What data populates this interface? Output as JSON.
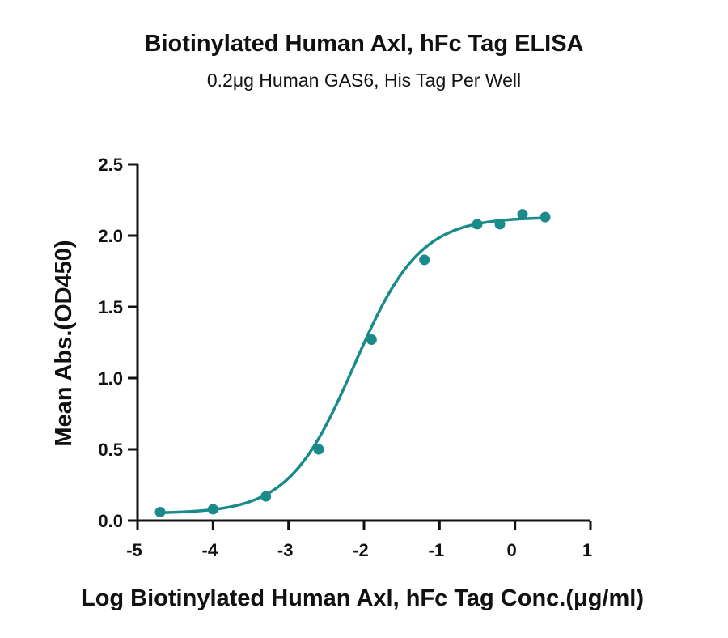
{
  "chart_data": {
    "type": "scatter",
    "title": "Biotinylated Human Axl, hFc Tag ELISA",
    "subtitle": "0.2μg Human GAS6, His Tag Per Well",
    "xlabel": "Log Biotinylated Human Axl, hFc Tag Conc.(μg/ml)",
    "ylabel": "Mean Abs.(OD450)",
    "xlim": [
      -5,
      1
    ],
    "ylim": [
      0,
      2.5
    ],
    "xticks": [
      "-5",
      "-4",
      "-3",
      "-2",
      "-1",
      "0",
      "1"
    ],
    "yticks": [
      "0.0",
      "0.5",
      "1.0",
      "1.5",
      "2.0",
      "2.5"
    ],
    "grid": false,
    "color": "#1a8a8a",
    "series": [
      {
        "points": [
          {
            "x": -4.7,
            "y": 0.06
          },
          {
            "x": -4.0,
            "y": 0.08
          },
          {
            "x": -3.3,
            "y": 0.17
          },
          {
            "x": -2.6,
            "y": 0.5
          },
          {
            "x": -1.9,
            "y": 1.27
          },
          {
            "x": -1.2,
            "y": 1.83
          },
          {
            "x": -0.5,
            "y": 2.08
          },
          {
            "x": -0.2,
            "y": 2.08
          },
          {
            "x": 0.1,
            "y": 2.15
          },
          {
            "x": 0.4,
            "y": 2.13
          }
        ],
        "fit": {
          "bottom": 0.05,
          "top": 2.13,
          "logEC50": -2.13,
          "hill": 1.0
        }
      }
    ]
  }
}
